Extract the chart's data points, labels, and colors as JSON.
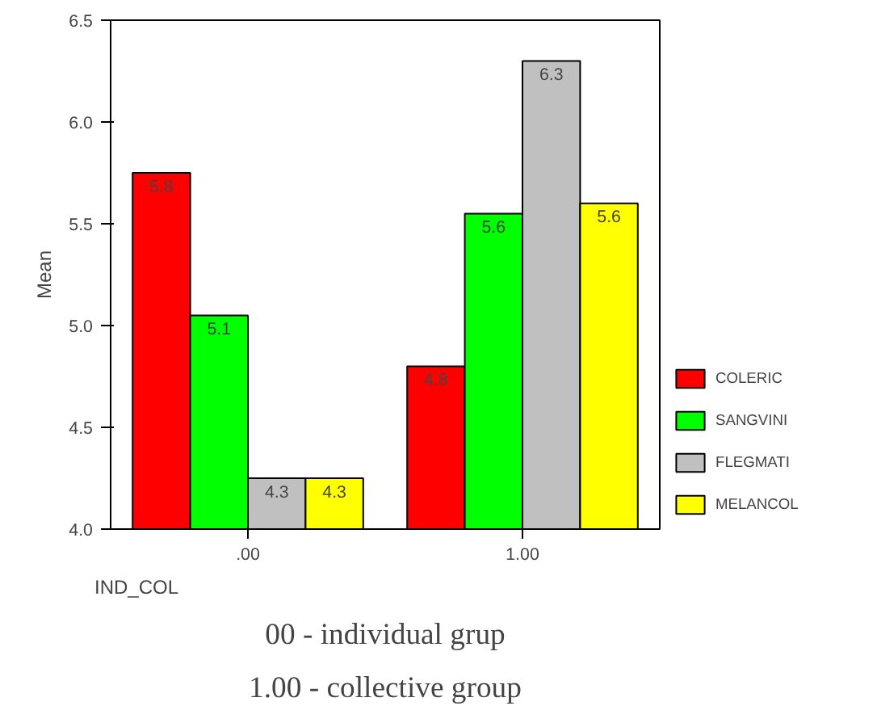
{
  "chart_data": {
    "type": "bar",
    "categories": [
      ".00",
      "1.00"
    ],
    "xlabel": "IND_COL",
    "ylabel": "Mean",
    "ylim": [
      4.0,
      6.5
    ],
    "yticks": [
      {
        "value": 4.0,
        "label": "4.0"
      },
      {
        "value": 4.5,
        "label": "4.5"
      },
      {
        "value": 5.0,
        "label": "5.0"
      },
      {
        "value": 5.5,
        "label": "5.5"
      },
      {
        "value": 6.0,
        "label": "6.0"
      },
      {
        "value": 6.5,
        "label": "6.5"
      }
    ],
    "series": [
      {
        "name": "COLERIC",
        "color": "#ff0000",
        "values": [
          5.75,
          4.8
        ],
        "value_labels": [
          "5.8",
          "4.8"
        ]
      },
      {
        "name": "SANGVINI",
        "color": "#00ff00",
        "values": [
          5.05,
          5.55
        ],
        "value_labels": [
          "5.1",
          "5.6"
        ]
      },
      {
        "name": "FLEGMATI",
        "color": "#c0c0c0",
        "values": [
          4.25,
          6.3
        ],
        "value_labels": [
          "4.3",
          "6.3"
        ]
      },
      {
        "name": "MELANCOL",
        "color": "#ffff00",
        "values": [
          4.25,
          5.6
        ],
        "value_labels": [
          "4.3",
          "5.6"
        ]
      }
    ],
    "legend": "right",
    "annotations": [
      "00 - individual grup",
      "1.00 - collective group"
    ]
  }
}
